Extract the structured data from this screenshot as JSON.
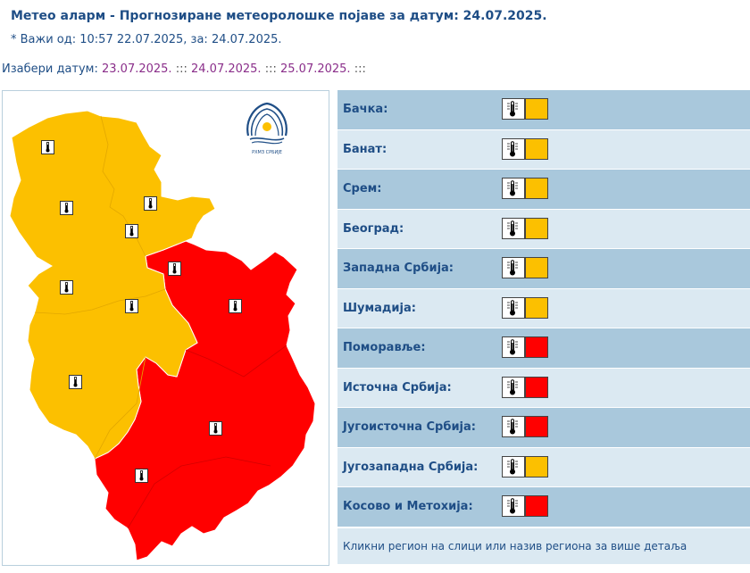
{
  "header": {
    "title": "Метео аларм - Прогнозиране метеоролошке појаве за датум:  24.07.2025.",
    "valid": "* Важи од: 10:57 22.07.2025, за: 24.07.2025."
  },
  "datebar": {
    "label": "Изабери датум:",
    "dates": [
      "23.07.2025.",
      "24.07.2025.",
      "25.07.2025."
    ],
    "separator": ":::"
  },
  "colors": {
    "yellow": "#fcc000",
    "red": "#ff0000"
  },
  "regions": [
    {
      "name": "Бачка:",
      "level": "yellow",
      "icon": "thermometer-icon"
    },
    {
      "name": "Банат:",
      "level": "yellow",
      "icon": "thermometer-icon"
    },
    {
      "name": "Срем:",
      "level": "yellow",
      "icon": "thermometer-icon"
    },
    {
      "name": "Београд:",
      "level": "yellow",
      "icon": "thermometer-icon"
    },
    {
      "name": "Западна Србија:",
      "level": "yellow",
      "icon": "thermometer-icon"
    },
    {
      "name": "Шумадија:",
      "level": "yellow",
      "icon": "thermometer-icon"
    },
    {
      "name": "Поморавље:",
      "level": "red",
      "icon": "thermometer-icon"
    },
    {
      "name": "Источна Србија:",
      "level": "red",
      "icon": "thermometer-icon"
    },
    {
      "name": "Југоисточна Србија:",
      "level": "red",
      "icon": "thermometer-icon"
    },
    {
      "name": "Југозападна Србија:",
      "level": "yellow",
      "icon": "thermometer-icon"
    },
    {
      "name": "Косово и Метохија:",
      "level": "red",
      "icon": "thermometer-icon"
    }
  ],
  "footer": {
    "hint": "Кликни регион на слици или назив региона за више детаља"
  }
}
